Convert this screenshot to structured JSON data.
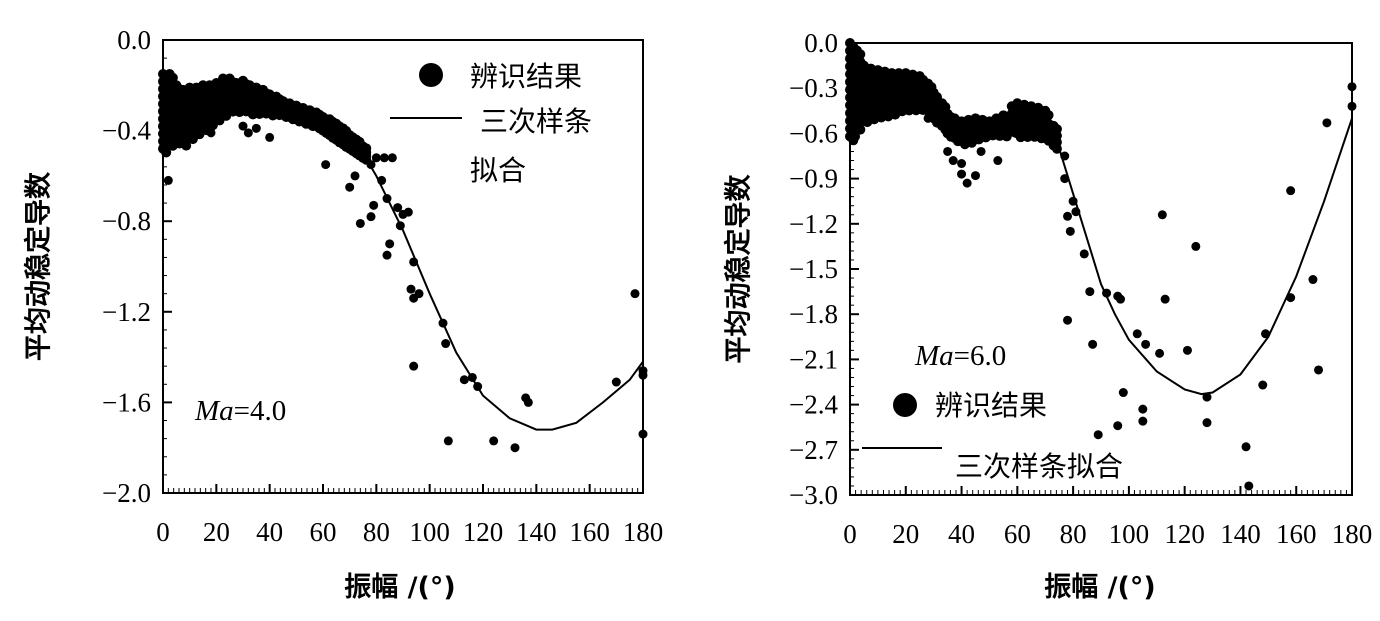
{
  "chart_data": [
    {
      "type": "scatter",
      "xlabel": "振幅 /(°)",
      "ylabel": "平均动稳定导数",
      "xlim": [
        0,
        180
      ],
      "ylim": [
        -2.0,
        0.0
      ],
      "xticks": [
        "0",
        "20",
        "40",
        "60",
        "80",
        "100",
        "120",
        "140",
        "160",
        "180"
      ],
      "yticks": [
        "0.0",
        "−0.4",
        "−0.8",
        "−1.2",
        "−1.6",
        "−2.0"
      ],
      "annotation": {
        "italic": "Ma",
        "rest": "=4.0"
      },
      "legend": {
        "placement": "top-right",
        "points_label": "辨识结果",
        "line_label_1": "三次样条",
        "line_label_2": "拟合"
      },
      "grid": false,
      "series": [
        {
          "name": "辨识结果",
          "kind": "points",
          "dense_band": [
            [
              0,
              -0.15,
              -0.48
            ],
            [
              2.5,
              -0.15,
              -0.45
            ],
            [
              5,
              -0.2,
              -0.44
            ],
            [
              7.5,
              -0.22,
              -0.45
            ],
            [
              10,
              -0.21,
              -0.42
            ],
            [
              12.5,
              -0.21,
              -0.4
            ],
            [
              15,
              -0.2,
              -0.38
            ],
            [
              17.5,
              -0.2,
              -0.36
            ],
            [
              20,
              -0.19,
              -0.34
            ],
            [
              22.5,
              -0.17,
              -0.32
            ],
            [
              25,
              -0.17,
              -0.3
            ],
            [
              27.5,
              -0.19,
              -0.3
            ],
            [
              30,
              -0.18,
              -0.3
            ],
            [
              32.5,
              -0.2,
              -0.31
            ],
            [
              35,
              -0.21,
              -0.31
            ],
            [
              37.5,
              -0.22,
              -0.31
            ],
            [
              40,
              -0.24,
              -0.32
            ],
            [
              42.5,
              -0.25,
              -0.32
            ],
            [
              45,
              -0.27,
              -0.33
            ],
            [
              47.5,
              -0.28,
              -0.34
            ],
            [
              50,
              -0.29,
              -0.35
            ],
            [
              52.5,
              -0.3,
              -0.36
            ],
            [
              55,
              -0.31,
              -0.37
            ],
            [
              57.5,
              -0.32,
              -0.38
            ],
            [
              60,
              -0.34,
              -0.4
            ],
            [
              62.5,
              -0.35,
              -0.42
            ],
            [
              65,
              -0.37,
              -0.44
            ],
            [
              67.5,
              -0.39,
              -0.46
            ],
            [
              70,
              -0.42,
              -0.48
            ],
            [
              72.5,
              -0.44,
              -0.5
            ],
            [
              75,
              -0.47,
              -0.52
            ]
          ],
          "points": [
            [
              2,
              -0.62
            ],
            [
              18,
              -0.41
            ],
            [
              30,
              -0.38
            ],
            [
              32,
              -0.41
            ],
            [
              35,
              -0.39
            ],
            [
              40,
              -0.43
            ],
            [
              61,
              -0.55
            ],
            [
              70,
              -0.65
            ],
            [
              72,
              -0.6
            ],
            [
              74,
              -0.81
            ],
            [
              78,
              -0.55
            ],
            [
              80,
              -0.52
            ],
            [
              83,
              -0.52
            ],
            [
              86,
              -0.52
            ],
            [
              78,
              -0.78
            ],
            [
              79,
              -0.73
            ],
            [
              82,
              -0.62
            ],
            [
              84,
              -0.7
            ],
            [
              85,
              -0.9
            ],
            [
              84,
              -0.95
            ],
            [
              88,
              -0.74
            ],
            [
              89,
              -0.82
            ],
            [
              90,
              -0.77
            ],
            [
              92,
              -0.76
            ],
            [
              94,
              -0.98
            ],
            [
              93,
              -1.1
            ],
            [
              94,
              -1.14
            ],
            [
              96,
              -1.12
            ],
            [
              94,
              -1.44
            ],
            [
              105,
              -1.25
            ],
            [
              106,
              -1.34
            ],
            [
              107,
              -1.77
            ],
            [
              113,
              -1.5
            ],
            [
              116,
              -1.49
            ],
            [
              118,
              -1.53
            ],
            [
              124,
              -1.77
            ],
            [
              132,
              -1.8
            ],
            [
              136,
              -1.58
            ],
            [
              137,
              -1.6
            ],
            [
              170,
              -1.51
            ],
            [
              177,
              -1.12
            ],
            [
              180,
              -1.46
            ],
            [
              180,
              -1.74
            ],
            [
              180,
              -1.48
            ]
          ]
        },
        {
          "name": "三次样条拟合",
          "kind": "line",
          "points": [
            [
              0,
              -0.3
            ],
            [
              10,
              -0.27
            ],
            [
              20,
              -0.24
            ],
            [
              25,
              -0.23
            ],
            [
              30,
              -0.24
            ],
            [
              40,
              -0.28
            ],
            [
              50,
              -0.33
            ],
            [
              60,
              -0.39
            ],
            [
              70,
              -0.46
            ],
            [
              75,
              -0.5
            ],
            [
              80,
              -0.6
            ],
            [
              90,
              -0.84
            ],
            [
              100,
              -1.12
            ],
            [
              110,
              -1.38
            ],
            [
              120,
              -1.57
            ],
            [
              130,
              -1.67
            ],
            [
              140,
              -1.72
            ],
            [
              146,
              -1.72
            ],
            [
              155,
              -1.69
            ],
            [
              165,
              -1.6
            ],
            [
              175,
              -1.5
            ],
            [
              180,
              -1.42
            ]
          ]
        }
      ]
    },
    {
      "type": "scatter",
      "xlabel": "振幅 /(°)",
      "ylabel": "平均动稳定导数",
      "xlim": [
        0,
        180
      ],
      "ylim": [
        -3.0,
        0.0
      ],
      "xticks": [
        "0",
        "20",
        "40",
        "60",
        "80",
        "100",
        "120",
        "140",
        "160",
        "180"
      ],
      "yticks": [
        "0.0",
        "−0.3",
        "−0.6",
        "−0.9",
        "−1.2",
        "−1.5",
        "−1.8",
        "−2.1",
        "−2.4",
        "−2.7",
        "−3.0"
      ],
      "annotation": {
        "italic": "Ma",
        "rest": "=6.0"
      },
      "legend": {
        "placement": "bottom-left",
        "points_label": "辨识结果",
        "line_label": "三次样条拟合"
      },
      "grid": false,
      "series": [
        {
          "name": "辨识结果",
          "kind": "points",
          "dense_band": [
            [
              0,
              0.0,
              -0.62
            ],
            [
              2.5,
              -0.05,
              -0.55
            ],
            [
              5,
              -0.15,
              -0.5
            ],
            [
              7.5,
              -0.17,
              -0.48
            ],
            [
              10,
              -0.18,
              -0.47
            ],
            [
              12.5,
              -0.19,
              -0.46
            ],
            [
              15,
              -0.2,
              -0.45
            ],
            [
              17.5,
              -0.2,
              -0.43
            ],
            [
              20,
              -0.2,
              -0.42
            ],
            [
              22.5,
              -0.21,
              -0.42
            ],
            [
              25,
              -0.22,
              -0.42
            ],
            [
              28,
              -0.27,
              -0.45
            ],
            [
              30,
              -0.33,
              -0.5
            ],
            [
              33,
              -0.4,
              -0.55
            ],
            [
              35,
              -0.47,
              -0.6
            ],
            [
              37.5,
              -0.5,
              -0.63
            ],
            [
              40,
              -0.52,
              -0.65
            ],
            [
              42.5,
              -0.51,
              -0.64
            ],
            [
              45,
              -0.5,
              -0.62
            ],
            [
              47.5,
              -0.51,
              -0.61
            ],
            [
              50,
              -0.52,
              -0.6
            ],
            [
              52.5,
              -0.5,
              -0.6
            ],
            [
              55,
              -0.48,
              -0.6
            ],
            [
              58,
              -0.42,
              -0.57
            ],
            [
              60,
              -0.4,
              -0.6
            ],
            [
              62.5,
              -0.41,
              -0.6
            ],
            [
              65,
              -0.42,
              -0.6
            ],
            [
              67.5,
              -0.43,
              -0.61
            ],
            [
              70,
              -0.45,
              -0.62
            ],
            [
              73,
              -0.55,
              -0.68
            ]
          ],
          "points": [
            [
              2,
              -0.62
            ],
            [
              28,
              -0.5
            ],
            [
              35,
              -0.72
            ],
            [
              37,
              -0.78
            ],
            [
              40,
              -0.8
            ],
            [
              40,
              -0.87
            ],
            [
              42,
              -0.93
            ],
            [
              45,
              -0.88
            ],
            [
              47,
              -0.72
            ],
            [
              53,
              -0.78
            ],
            [
              60,
              -0.45
            ],
            [
              63,
              -0.42
            ],
            [
              77,
              -0.75
            ],
            [
              77,
              -0.9
            ],
            [
              80,
              -1.05
            ],
            [
              78,
              -1.15
            ],
            [
              79,
              -1.25
            ],
            [
              81,
              -1.12
            ],
            [
              84,
              -1.4
            ],
            [
              86,
              -1.65
            ],
            [
              87,
              -2.0
            ],
            [
              89,
              -2.6
            ],
            [
              92,
              -1.66
            ],
            [
              96,
              -1.68
            ],
            [
              97,
              -1.7
            ],
            [
              98,
              -2.32
            ],
            [
              96,
              -2.54
            ],
            [
              103,
              -1.93
            ],
            [
              105,
              -2.43
            ],
            [
              105,
              -2.51
            ],
            [
              106,
              -2.0
            ],
            [
              111,
              -2.06
            ],
            [
              112,
              -1.14
            ],
            [
              113,
              -1.7
            ],
            [
              121,
              -2.04
            ],
            [
              124,
              -1.35
            ],
            [
              128,
              -2.35
            ],
            [
              128,
              -2.52
            ],
            [
              142,
              -2.68
            ],
            [
              143,
              -2.94
            ],
            [
              148,
              -2.27
            ],
            [
              149,
              -1.93
            ],
            [
              158,
              -1.69
            ],
            [
              158,
              -0.98
            ],
            [
              166,
              -1.57
            ],
            [
              168,
              -2.17
            ],
            [
              171,
              -0.53
            ],
            [
              180,
              -0.29
            ],
            [
              180,
              -0.42
            ],
            [
              78,
              -1.84
            ]
          ]
        },
        {
          "name": "三次样条拟合",
          "kind": "line",
          "points": [
            [
              70,
              -0.5
            ],
            [
              75,
              -0.7
            ],
            [
              80,
              -1.0
            ],
            [
              85,
              -1.3
            ],
            [
              90,
              -1.6
            ],
            [
              95,
              -1.8
            ],
            [
              100,
              -1.97
            ],
            [
              110,
              -2.18
            ],
            [
              120,
              -2.3
            ],
            [
              126,
              -2.33
            ],
            [
              130,
              -2.32
            ],
            [
              140,
              -2.2
            ],
            [
              150,
              -1.95
            ],
            [
              160,
              -1.55
            ],
            [
              170,
              -1.05
            ],
            [
              180,
              -0.5
            ]
          ]
        }
      ]
    }
  ]
}
